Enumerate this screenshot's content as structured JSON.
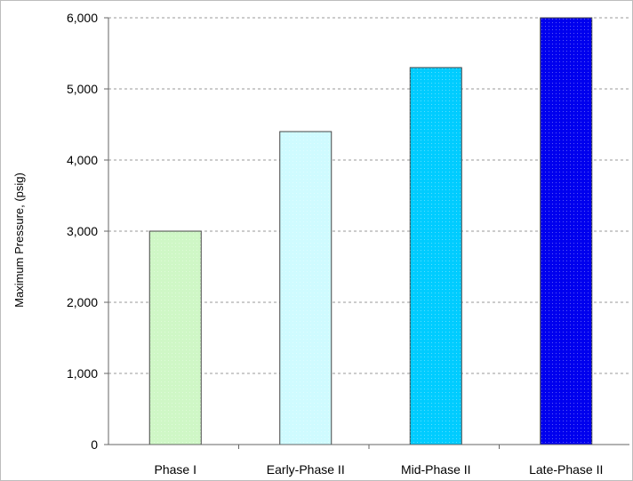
{
  "chart_data": {
    "type": "bar",
    "title": "",
    "xlabel": "",
    "ylabel": "Maximum Pressure, (psig)",
    "categories": [
      "Phase I",
      "Early-Phase II",
      "Mid-Phase II",
      "Late-Phase II"
    ],
    "values": [
      3000,
      4400,
      5300,
      6000
    ],
    "ylim": [
      0,
      6000
    ],
    "yticks": [
      0,
      1000,
      2000,
      3000,
      4000,
      5000,
      6000
    ],
    "ytick_labels": [
      "0",
      "1,000",
      "2,000",
      "3,000",
      "4,000",
      "5,000",
      "6,000"
    ],
    "grid": "horizontal dashed",
    "legend": "none",
    "bar_colors": [
      "#cff7c6",
      "#cffbff",
      "#00ccff",
      "#0000ee"
    ]
  }
}
